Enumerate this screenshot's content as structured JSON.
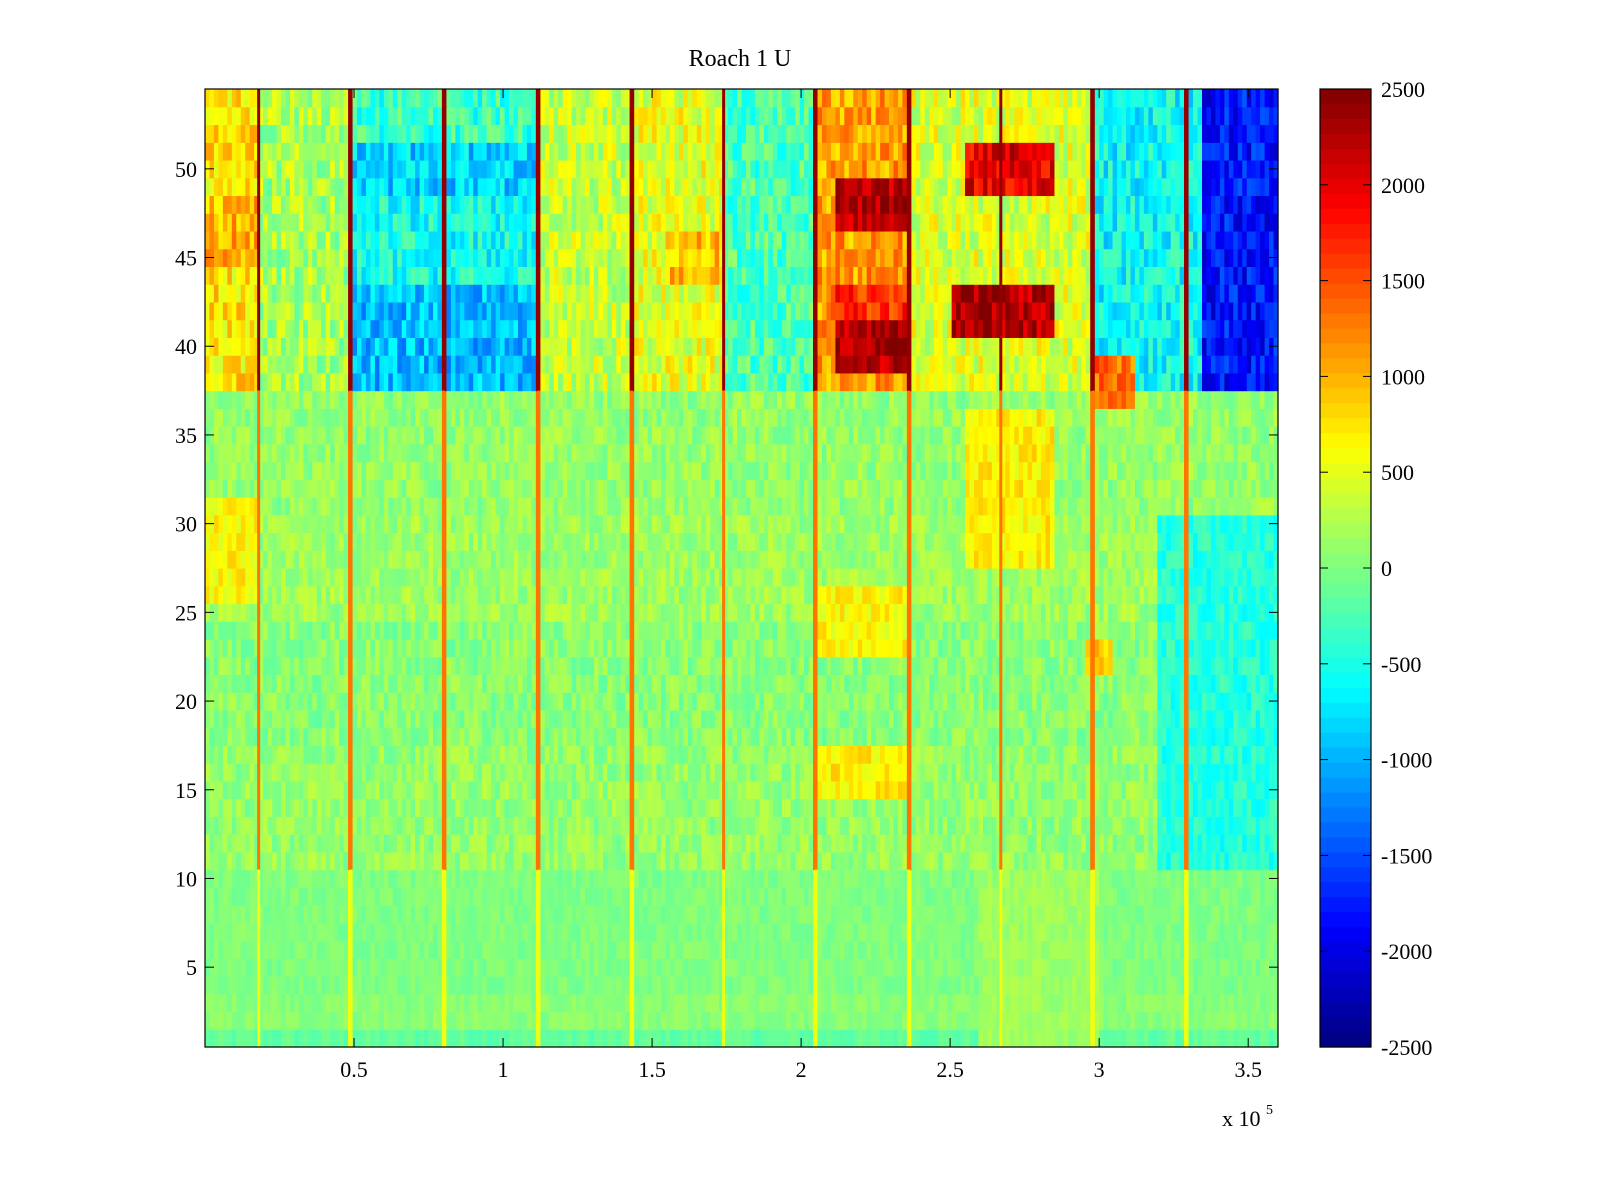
{
  "chart_data": {
    "type": "heatmap",
    "title": "Roach 1 U",
    "xlabel": "",
    "ylabel": "",
    "x_multiplier_label": "x 10",
    "x_multiplier_exponent": "5",
    "xlim": [
      0,
      3.6
    ],
    "ylim": [
      0.5,
      54.5
    ],
    "x_ticks": [
      {
        "value": 0.5,
        "label": "0.5"
      },
      {
        "value": 1.0,
        "label": "1"
      },
      {
        "value": 1.5,
        "label": "1.5"
      },
      {
        "value": 2.0,
        "label": "2"
      },
      {
        "value": 2.5,
        "label": "2.5"
      },
      {
        "value": 3.0,
        "label": "3"
      },
      {
        "value": 3.5,
        "label": "3.5"
      }
    ],
    "y_ticks": [
      {
        "value": 5,
        "label": "5"
      },
      {
        "value": 10,
        "label": "10"
      },
      {
        "value": 15,
        "label": "15"
      },
      {
        "value": 20,
        "label": "20"
      },
      {
        "value": 25,
        "label": "25"
      },
      {
        "value": 30,
        "label": "30"
      },
      {
        "value": 35,
        "label": "35"
      },
      {
        "value": 40,
        "label": "40"
      },
      {
        "value": 45,
        "label": "45"
      },
      {
        "value": 50,
        "label": "50"
      }
    ],
    "colorbar": {
      "colormap": "jet",
      "range": [
        -2500,
        2500
      ],
      "ticks": [
        {
          "value": 2500,
          "label": "2500"
        },
        {
          "value": 2000,
          "label": "2000"
        },
        {
          "value": 1500,
          "label": "1500"
        },
        {
          "value": 1000,
          "label": "1000"
        },
        {
          "value": 500,
          "label": "500"
        },
        {
          "value": 0,
          "label": "0"
        },
        {
          "value": -500,
          "label": "-500"
        },
        {
          "value": -1000,
          "label": "-1000"
        },
        {
          "value": -1500,
          "label": "-1500"
        },
        {
          "value": -2000,
          "label": "-2000"
        },
        {
          "value": -2500,
          "label": "-2500"
        }
      ]
    },
    "n_channels": 54,
    "channel_bands": [
      {
        "from": 1,
        "to": 1,
        "value": -150
      },
      {
        "from": 2,
        "to": 3,
        "value": 50
      },
      {
        "from": 4,
        "to": 10,
        "value": 0
      },
      {
        "from": 11,
        "to": 17,
        "value": 100
      },
      {
        "from": 18,
        "to": 24,
        "value": 50
      },
      {
        "from": 25,
        "to": 30,
        "value": 150
      },
      {
        "from": 31,
        "to": 37,
        "value": 100
      },
      {
        "from": 38,
        "to": 54,
        "value": 0
      }
    ],
    "event_times": [
      0.18,
      0.49,
      0.8,
      1.12,
      1.43,
      1.74,
      2.05,
      2.36,
      2.67,
      2.98,
      3.29
    ],
    "event_amplitudes": [
      {
        "min_channel": 38,
        "max_channel": 54,
        "value": 2400
      },
      {
        "min_channel": 11,
        "max_channel": 37,
        "value": 1300
      },
      {
        "min_channel": 1,
        "max_channel": 10,
        "value": 550
      }
    ],
    "regions": [
      {
        "channel_from": 38,
        "channel_to": 54,
        "x_from": 0.0,
        "x_to": 0.18,
        "value": 750
      },
      {
        "channel_from": 45,
        "channel_to": 48,
        "x_from": 0.0,
        "x_to": 0.18,
        "value": 1000
      },
      {
        "channel_from": 38,
        "channel_to": 54,
        "x_from": 0.18,
        "x_to": 0.49,
        "value": 200
      },
      {
        "channel_from": 38,
        "channel_to": 43,
        "x_from": 0.49,
        "x_to": 1.12,
        "value": -950
      },
      {
        "channel_from": 49,
        "channel_to": 51,
        "x_from": 0.49,
        "x_to": 1.12,
        "value": -850
      },
      {
        "channel_from": 44,
        "channel_to": 48,
        "x_from": 0.49,
        "x_to": 1.12,
        "value": -550
      },
      {
        "channel_from": 52,
        "channel_to": 54,
        "x_from": 0.49,
        "x_to": 1.12,
        "value": -350
      },
      {
        "channel_from": 38,
        "channel_to": 54,
        "x_from": 1.12,
        "x_to": 1.43,
        "value": 350
      },
      {
        "channel_from": 38,
        "channel_to": 54,
        "x_from": 1.43,
        "x_to": 1.74,
        "value": 500
      },
      {
        "channel_from": 44,
        "channel_to": 46,
        "x_from": 1.55,
        "x_to": 1.9,
        "value": 900
      },
      {
        "channel_from": 38,
        "channel_to": 54,
        "x_from": 1.74,
        "x_to": 2.05,
        "value": -250
      },
      {
        "channel_from": 38,
        "channel_to": 54,
        "x_from": 2.05,
        "x_to": 2.36,
        "value": 1100
      },
      {
        "channel_from": 39,
        "channel_to": 41,
        "x_from": 2.12,
        "x_to": 2.36,
        "value": 2200
      },
      {
        "channel_from": 47,
        "channel_to": 49,
        "x_from": 2.12,
        "x_to": 2.36,
        "value": 2250
      },
      {
        "channel_from": 42,
        "channel_to": 43,
        "x_from": 2.1,
        "x_to": 2.36,
        "value": 1700
      },
      {
        "channel_from": 38,
        "channel_to": 54,
        "x_from": 2.36,
        "x_to": 2.98,
        "value": 450
      },
      {
        "channel_from": 41,
        "channel_to": 43,
        "x_from": 2.5,
        "x_to": 2.85,
        "value": 2300
      },
      {
        "channel_from": 49,
        "channel_to": 51,
        "x_from": 2.55,
        "x_to": 2.85,
        "value": 2000
      },
      {
        "channel_from": 38,
        "channel_to": 54,
        "x_from": 2.98,
        "x_to": 3.6,
        "value": -600
      },
      {
        "channel_from": 37,
        "channel_to": 39,
        "x_from": 2.98,
        "x_to": 3.12,
        "value": 1300
      },
      {
        "channel_from": 38,
        "channel_to": 54,
        "x_from": 3.35,
        "x_to": 3.6,
        "value": -1800
      },
      {
        "channel_from": 28,
        "channel_to": 36,
        "x_from": 2.55,
        "x_to": 2.85,
        "value": 700
      },
      {
        "channel_from": 23,
        "channel_to": 26,
        "x_from": 2.05,
        "x_to": 2.36,
        "value": 650
      },
      {
        "channel_from": 15,
        "channel_to": 17,
        "x_from": 2.05,
        "x_to": 2.36,
        "value": 700
      },
      {
        "channel_from": 26,
        "channel_to": 31,
        "x_from": 0.0,
        "x_to": 0.18,
        "value": 650
      },
      {
        "channel_from": 22,
        "channel_to": 23,
        "x_from": 2.95,
        "x_to": 3.05,
        "value": 900
      },
      {
        "channel_from": 11,
        "channel_to": 30,
        "x_from": 3.2,
        "x_to": 3.6,
        "value": -450
      },
      {
        "channel_from": 1,
        "channel_to": 10,
        "x_from": 2.6,
        "x_to": 3.0,
        "value": 150
      }
    ]
  }
}
